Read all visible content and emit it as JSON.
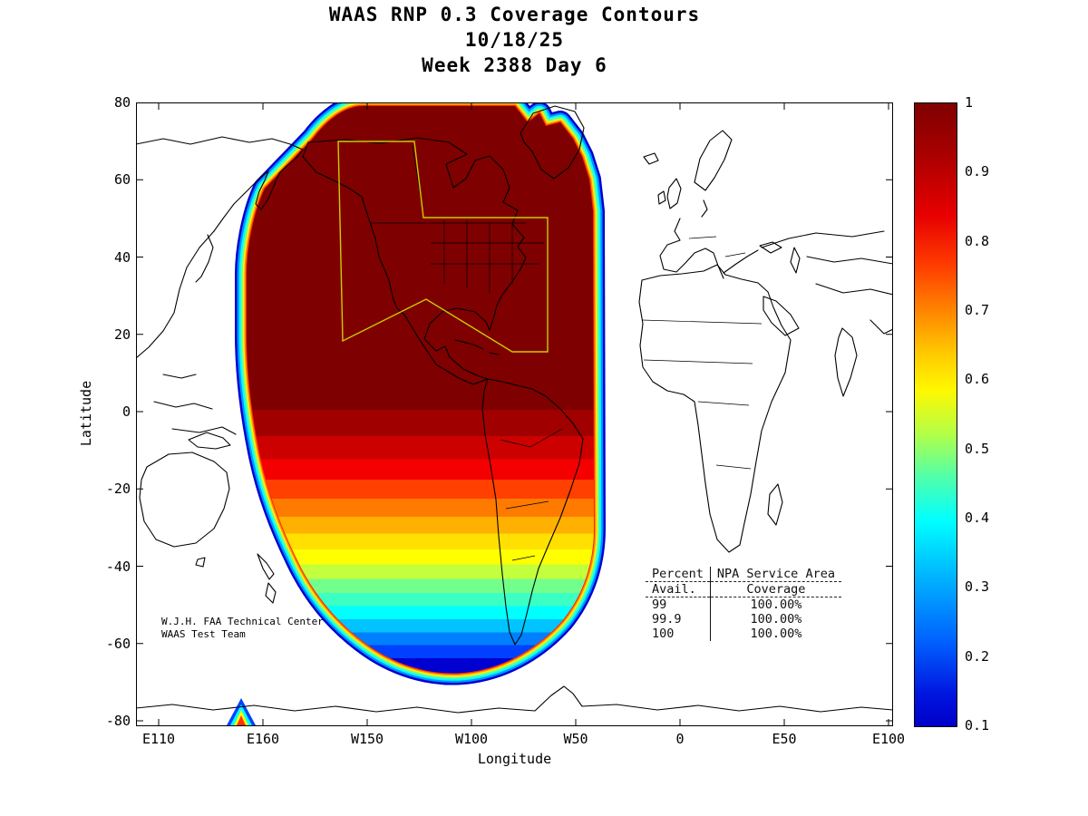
{
  "title": {
    "line1": "WAAS RNP 0.3 Coverage Contours",
    "line2": "10/18/25",
    "line3": "Week 2388 Day 6"
  },
  "axes": {
    "x_label": "Longitude",
    "y_label": "Latitude",
    "x_ticks": [
      "E110",
      "E160",
      "W150",
      "W100",
      "W50",
      "0",
      "E50",
      "E100"
    ],
    "y_ticks": [
      "80",
      "60",
      "40",
      "20",
      "0",
      "-20",
      "-40",
      "-60",
      "-80"
    ]
  },
  "colorbar": {
    "ticks": [
      "1",
      "0.9",
      "0.8",
      "0.7",
      "0.6",
      "0.5",
      "0.4",
      "0.3",
      "0.2",
      "0.1"
    ],
    "min": 0.1,
    "max": 1,
    "colormap": "jet"
  },
  "annotation": {
    "line1": "W.J.H. FAA Technical Center",
    "line2": "WAAS Test Team"
  },
  "coverage_table": {
    "col1_header": "Percent",
    "col2_header": "NPA Service Area",
    "col1_sub": "Avail.",
    "col2_sub": "Coverage",
    "rows": [
      [
        "99",
        "100.00%"
      ],
      [
        "99.9",
        "100.00%"
      ],
      [
        "100",
        "100.00%"
      ]
    ]
  },
  "chart_data": {
    "type": "heatmap",
    "subtype": "filled contour map of WAAS RNP 0.3 availability over a world map",
    "title": "WAAS RNP 0.3 Coverage Contours",
    "date": "10/18/25",
    "week": "2388",
    "day": "6",
    "x_axis": {
      "label": "Longitude",
      "tick_labels": [
        "E110",
        "E160",
        "W150",
        "W100",
        "W50",
        "0",
        "E50",
        "E100"
      ]
    },
    "y_axis": {
      "label": "Latitude",
      "tick_labels": [
        80,
        60,
        40,
        20,
        0,
        -20,
        -40,
        -60,
        -80
      ],
      "range": [
        -80,
        80
      ]
    },
    "colorbar": {
      "colormap": "jet",
      "tick_values": [
        1,
        0.9,
        0.8,
        0.7,
        0.6,
        0.5,
        0.4,
        0.3,
        0.2,
        0.1
      ],
      "range": [
        0.1,
        1
      ]
    },
    "contour_description": [
      "Availability ~1.0 (dark red) covers North America, Central America, the north-east Pacific and northern South America from about latitude 75N down to about 10S between roughly W165 and W45.",
      "Bands decrease southward: 0.9 near 25S, 0.8 near 30S, 0.7 orange near 33S, 0.6 yellow near 37S, 0.5 green near 41S, 0.4 cyan near 46S, 0.3 near 52S, 0.2 near 58S, 0.1 dark blue outer edge near 65S.",
      "Small isolated contour feature near E155 longitude, 78S latitude.",
      "Yellow outline marks the NPA Service Area (Alaska and CONUS regions)."
    ],
    "npa_service_area_coverage": [
      {
        "percent_avail": "99",
        "coverage": "100.00%"
      },
      {
        "percent_avail": "99.9",
        "coverage": "100.00%"
      },
      {
        "percent_avail": "100",
        "coverage": "100.00%"
      }
    ]
  }
}
